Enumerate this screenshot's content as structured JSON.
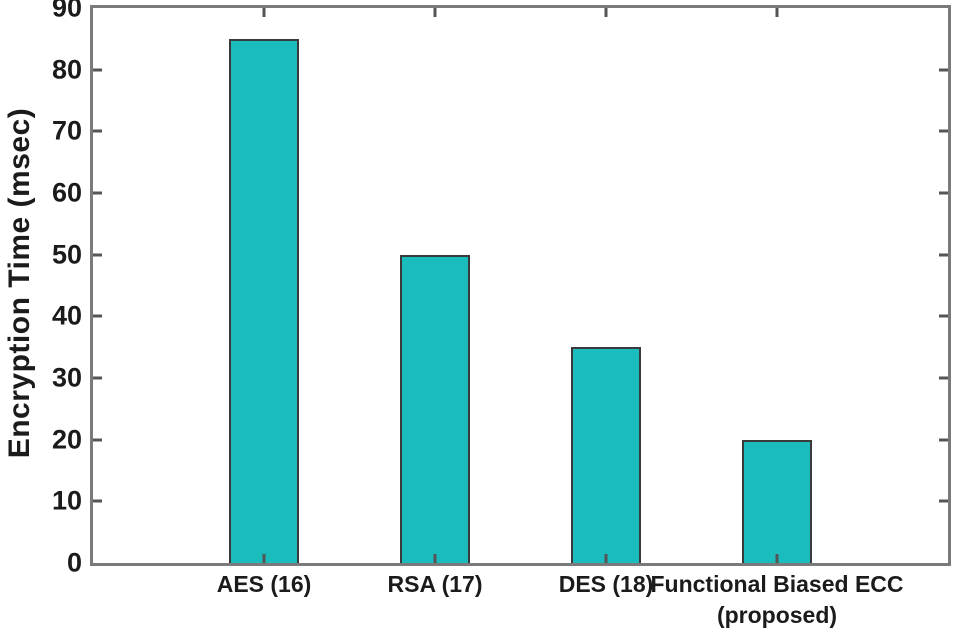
{
  "chart_data": {
    "type": "bar",
    "title": "",
    "ylabel": "Encryption Time (msec)",
    "xlabel": "",
    "categories": [
      "AES (16)",
      "RSA (17)",
      "DES (18)",
      "Functional Biased ECC (proposed)"
    ],
    "category_display_lines": [
      [
        "AES (16)"
      ],
      [
        "RSA (17)"
      ],
      [
        "DES (18)"
      ],
      [
        "Functional Biased ECC",
        "(proposed)"
      ]
    ],
    "values": [
      85,
      50,
      35,
      20
    ],
    "ylim": [
      0,
      90
    ],
    "ytick_step": 10,
    "ytick_labels": [
      "0",
      "10",
      "20",
      "30",
      "40",
      "50",
      "60",
      "70",
      "80",
      "90"
    ],
    "grid": false,
    "legend_position": "none",
    "colors": {
      "bar_fill": "#1abcbd",
      "bar_outline": "#3a3a3a",
      "axis_box": "#7a7a7a",
      "tick_marks": "#555555",
      "text": "#1b1b1b",
      "background": "#ffffff"
    }
  }
}
